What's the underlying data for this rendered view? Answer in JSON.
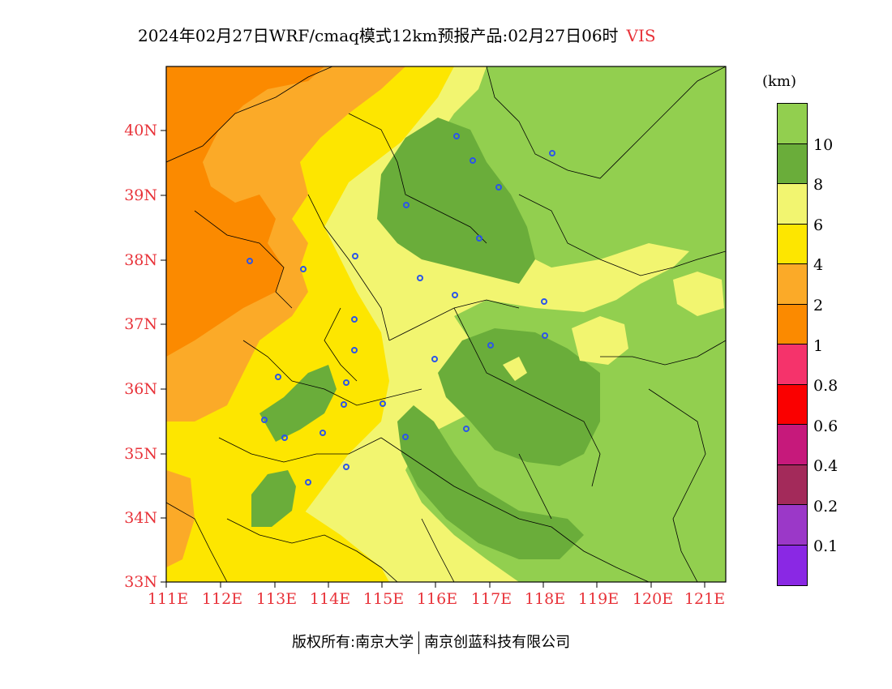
{
  "title": {
    "text": "2024年02月27日WRF/cmaq模式12km预报产品:02月27日06时",
    "variable": "VIS"
  },
  "lat_labels": [
    "40N",
    "39N",
    "38N",
    "37N",
    "36N",
    "35N",
    "34N",
    "33N"
  ],
  "lon_labels": [
    "111E",
    "112E",
    "113E",
    "114E",
    "115E",
    "116E",
    "117E",
    "118E",
    "119E",
    "120E",
    "121E"
  ],
  "legend": {
    "unit": "(km)",
    "levels": [
      "10",
      "8",
      "6",
      "4",
      "2",
      "1",
      "0.8",
      "0.6",
      "0.4",
      "0.2",
      "0.1"
    ],
    "colors": [
      "#92cf4f",
      "#6aad3a",
      "#f2f570",
      "#fde600",
      "#fbaa28",
      "#fb8a00",
      "#f5336b",
      "#fa0000",
      "#c6197b",
      "#a32a5a",
      "#9b38c8",
      "#8a28e4"
    ]
  },
  "footer": {
    "left": "版权所有:南京大学",
    "right": "南京创蓝科技有限公司"
  }
}
